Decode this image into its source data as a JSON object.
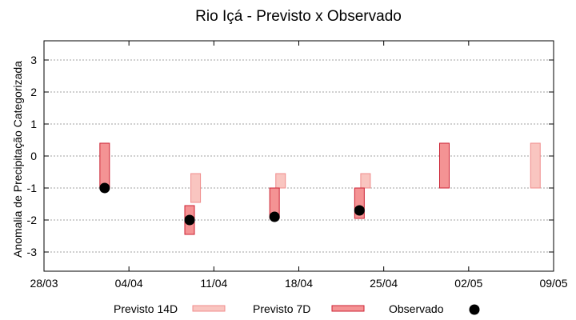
{
  "chart_data": {
    "type": "interval",
    "title": "Rio Içá - Previsto x Observado",
    "xlabel": "",
    "ylabel": "Anomalia de Precipitação Categorizada",
    "ylim": [
      -3.6,
      3.6
    ],
    "yticks": [
      3,
      2,
      1,
      0,
      -1,
      -2,
      -3
    ],
    "ytick_labels": [
      "3",
      "2",
      "1",
      "0",
      "-1",
      "-2",
      "-3"
    ],
    "x_start_date": "2023-03-28",
    "x_end_date": "2023-05-09",
    "xtick_days": [
      0,
      7,
      14,
      21,
      28,
      35,
      42
    ],
    "xtick_labels": [
      "28/03",
      "04/04",
      "11/04",
      "18/04",
      "25/04",
      "02/05",
      "09/05"
    ],
    "grid": true,
    "series": [
      {
        "name": "Previsto 14D",
        "kind": "range",
        "color": "#F9C5C0",
        "edge": "#F08C8C",
        "points": [
          {
            "x_day": 12.5,
            "low": -1.45,
            "high": -0.55
          },
          {
            "x_day": 19.5,
            "low": -1.0,
            "high": -0.55
          },
          {
            "x_day": 26.5,
            "low": -1.0,
            "high": -0.55
          },
          {
            "x_day": 40.5,
            "low": -1.0,
            "high": 0.4
          }
        ]
      },
      {
        "name": "Previsto 7D",
        "kind": "range",
        "color": "#F49394",
        "edge": "#CC2233",
        "points": [
          {
            "x_day": 5.0,
            "low": -1.0,
            "high": 0.4
          },
          {
            "x_day": 12.0,
            "low": -2.45,
            "high": -1.55
          },
          {
            "x_day": 19.0,
            "low": -1.95,
            "high": -1.0
          },
          {
            "x_day": 26.0,
            "low": -1.95,
            "high": -1.0
          },
          {
            "x_day": 33.0,
            "low": -1.0,
            "high": 0.4
          }
        ]
      },
      {
        "name": "Observado",
        "kind": "point",
        "color": "#000000",
        "points": [
          {
            "x_day": 5.0,
            "y": -1.0
          },
          {
            "x_day": 12.0,
            "y": -2.0
          },
          {
            "x_day": 19.0,
            "y": -1.9
          },
          {
            "x_day": 26.0,
            "y": -1.7
          }
        ]
      }
    ],
    "legend": {
      "position": "bottom",
      "items": [
        "Previsto 14D",
        "Previsto 7D",
        "Observado"
      ]
    }
  }
}
